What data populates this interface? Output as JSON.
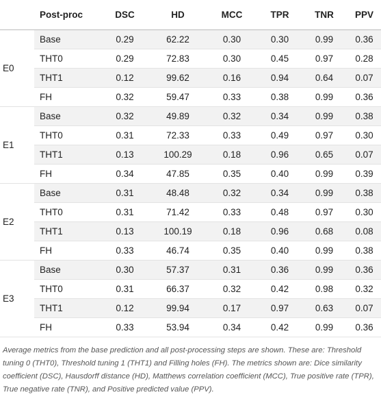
{
  "table": {
    "header": [
      "Post-proc",
      "DSC",
      "HD",
      "MCC",
      "TPR",
      "TNR",
      "PPV"
    ],
    "groups": [
      {
        "label": "E0",
        "rows": [
          [
            "Base",
            "0.29",
            "62.22",
            "0.30",
            "0.30",
            "0.99",
            "0.36"
          ],
          [
            "THT0",
            "0.29",
            "72.83",
            "0.30",
            "0.45",
            "0.97",
            "0.28"
          ],
          [
            "THT1",
            "0.12",
            "99.62",
            "0.16",
            "0.94",
            "0.64",
            "0.07"
          ],
          [
            "FH",
            "0.32",
            "59.47",
            "0.33",
            "0.38",
            "0.99",
            "0.36"
          ]
        ]
      },
      {
        "label": "E1",
        "rows": [
          [
            "Base",
            "0.32",
            "49.89",
            "0.32",
            "0.34",
            "0.99",
            "0.38"
          ],
          [
            "THT0",
            "0.31",
            "72.33",
            "0.33",
            "0.49",
            "0.97",
            "0.30"
          ],
          [
            "THT1",
            "0.13",
            "100.29",
            "0.18",
            "0.96",
            "0.65",
            "0.07"
          ],
          [
            "FH",
            "0.34",
            "47.85",
            "0.35",
            "0.40",
            "0.99",
            "0.39"
          ]
        ]
      },
      {
        "label": "E2",
        "rows": [
          [
            "Base",
            "0.31",
            "48.48",
            "0.32",
            "0.34",
            "0.99",
            "0.38"
          ],
          [
            "THT0",
            "0.31",
            "71.42",
            "0.33",
            "0.48",
            "0.97",
            "0.30"
          ],
          [
            "THT1",
            "0.13",
            "100.19",
            "0.18",
            "0.96",
            "0.68",
            "0.08"
          ],
          [
            "FH",
            "0.33",
            "46.74",
            "0.35",
            "0.40",
            "0.99",
            "0.38"
          ]
        ]
      },
      {
        "label": "E3",
        "rows": [
          [
            "Base",
            "0.30",
            "57.37",
            "0.31",
            "0.36",
            "0.99",
            "0.36"
          ],
          [
            "THT0",
            "0.31",
            "66.37",
            "0.32",
            "0.42",
            "0.98",
            "0.32"
          ],
          [
            "THT1",
            "0.12",
            "99.94",
            "0.17",
            "0.97",
            "0.63",
            "0.07"
          ],
          [
            "FH",
            "0.33",
            "53.94",
            "0.34",
            "0.42",
            "0.99",
            "0.36"
          ]
        ]
      }
    ],
    "caption": "Average metrics from the base prediction and all post-processing steps are shown. These are: Threshold tuning 0 (THT0), Threshold tuning 1 (THT1) and Filling holes (FH). The metrics shown are: Dice similarity coefficient (DSC), Hausdorff distance (HD), Matthews correlation coefficient (MCC), True positive rate (TPR), True negative rate (TNR), and Positive predicted value (PPV)."
  }
}
